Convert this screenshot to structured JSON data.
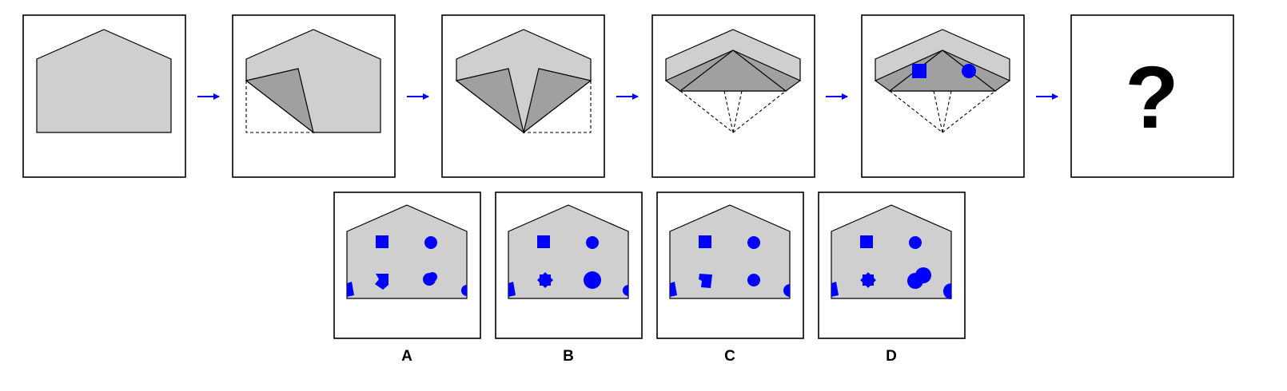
{
  "puzzle": {
    "question_mark": "?",
    "options": [
      {
        "label": "A"
      },
      {
        "label": "B"
      },
      {
        "label": "C"
      },
      {
        "label": "D"
      }
    ]
  },
  "colors": {
    "paper": "#cfcfcf",
    "fold": "#a0a0a0",
    "stroke": "#000000",
    "marker": "#0000ff",
    "arrow": "#0000ff"
  },
  "icons": {
    "arrow": "arrow-right-icon",
    "square_marker": "square-icon",
    "circle_marker": "circle-icon"
  }
}
